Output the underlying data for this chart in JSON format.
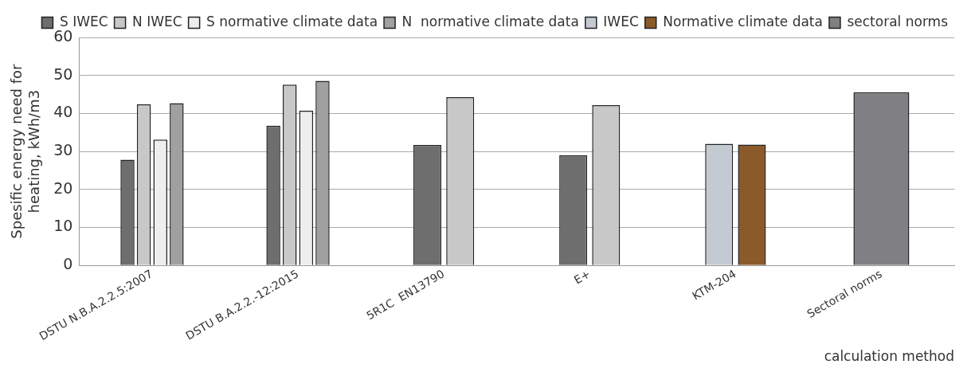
{
  "chart_data": {
    "type": "bar",
    "xlabel": "calculation method",
    "ylabel": "Spesific energy need for heating, kWh/m3",
    "categories": [
      "DSTU N.B.A.2.2.5:2007",
      "DSTU B.A.2.2.-12:2015",
      "5R1C  EN13790",
      "E+",
      "KTM-204",
      "Sectoral norms"
    ],
    "series": [
      {
        "name": "S IWEC",
        "color": "#6e6e6e",
        "values": [
          27.8,
          36.8,
          31.7,
          29.0,
          null,
          null
        ]
      },
      {
        "name": "N IWEC",
        "color": "#c8c8c8",
        "values": [
          42.4,
          47.6,
          44.3,
          42.2,
          null,
          null
        ]
      },
      {
        "name": "S normative climate data",
        "color": "#eeeeee",
        "values": [
          33.1,
          40.7,
          null,
          null,
          null,
          null
        ]
      },
      {
        "name": "N  normative climate data",
        "color": "#a0a0a0",
        "values": [
          42.7,
          48.6,
          null,
          null,
          null,
          null
        ]
      },
      {
        "name": "IWEC",
        "color": "#c4cad2",
        "values": [
          null,
          null,
          null,
          null,
          32.0,
          null
        ]
      },
      {
        "name": "Normative climate data",
        "color": "#8b5a2b",
        "values": [
          null,
          null,
          null,
          null,
          31.8,
          null
        ]
      },
      {
        "name": "sectoral norms",
        "color": "#7f7f84",
        "values": [
          null,
          null,
          null,
          null,
          null,
          45.6
        ]
      }
    ],
    "ylim": [
      0,
      60
    ],
    "yticks": [
      0,
      10,
      20,
      30,
      40,
      50,
      60
    ],
    "grid": "y",
    "legend": "top right"
  }
}
